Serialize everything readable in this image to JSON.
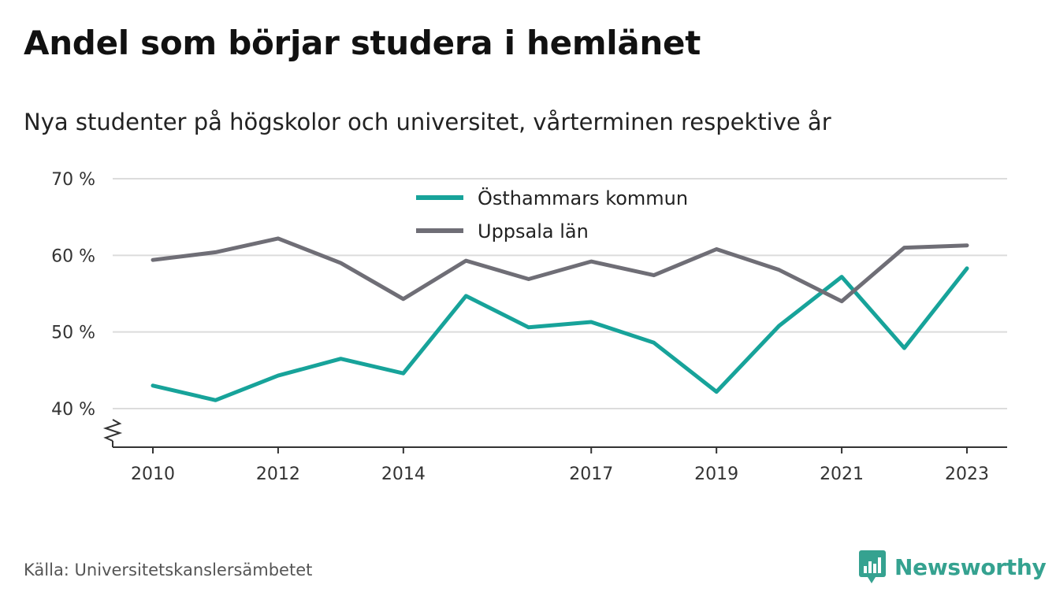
{
  "title": "Andel som börjar studera i hemlänet",
  "subtitle": "Nya studenter på högskolor och universitet, vårterminen respektive år",
  "source": "Källa: Universitetskanslersämbetet",
  "brand": {
    "name": "Newsworthy",
    "icon": "newsworthy-logo-icon",
    "color": "#35a290"
  },
  "chart_data": {
    "type": "line",
    "x": [
      2010,
      2011,
      2012,
      2013,
      2014,
      2015,
      2016,
      2017,
      2018,
      2019,
      2020,
      2021,
      2022,
      2023
    ],
    "x_tick_labels": [
      "2010",
      "2012",
      "2014",
      "2017",
      "2019",
      "2021",
      "2023"
    ],
    "x_tick_values": [
      2010,
      2012,
      2014,
      2017,
      2019,
      2021,
      2023
    ],
    "y_tick_labels": [
      "70 %",
      "60 %",
      "50 %",
      "40 %"
    ],
    "y_tick_values": [
      70,
      60,
      50,
      40
    ],
    "ylim": [
      35,
      70
    ],
    "y_axis_break": true,
    "grid": "horizontal",
    "legend_position": "top-center",
    "series": [
      {
        "name": "Östhammars kommun",
        "color": "#17a39a",
        "values": [
          43.0,
          41.1,
          44.3,
          46.5,
          44.6,
          54.7,
          50.6,
          51.3,
          48.6,
          42.2,
          50.8,
          57.2,
          47.9,
          58.3
        ]
      },
      {
        "name": "Uppsala län",
        "color": "#6f6e76",
        "values": [
          59.4,
          60.4,
          62.2,
          59.0,
          54.3,
          59.3,
          56.9,
          59.2,
          57.4,
          60.8,
          58.1,
          54.0,
          61.0,
          61.3
        ]
      }
    ]
  }
}
